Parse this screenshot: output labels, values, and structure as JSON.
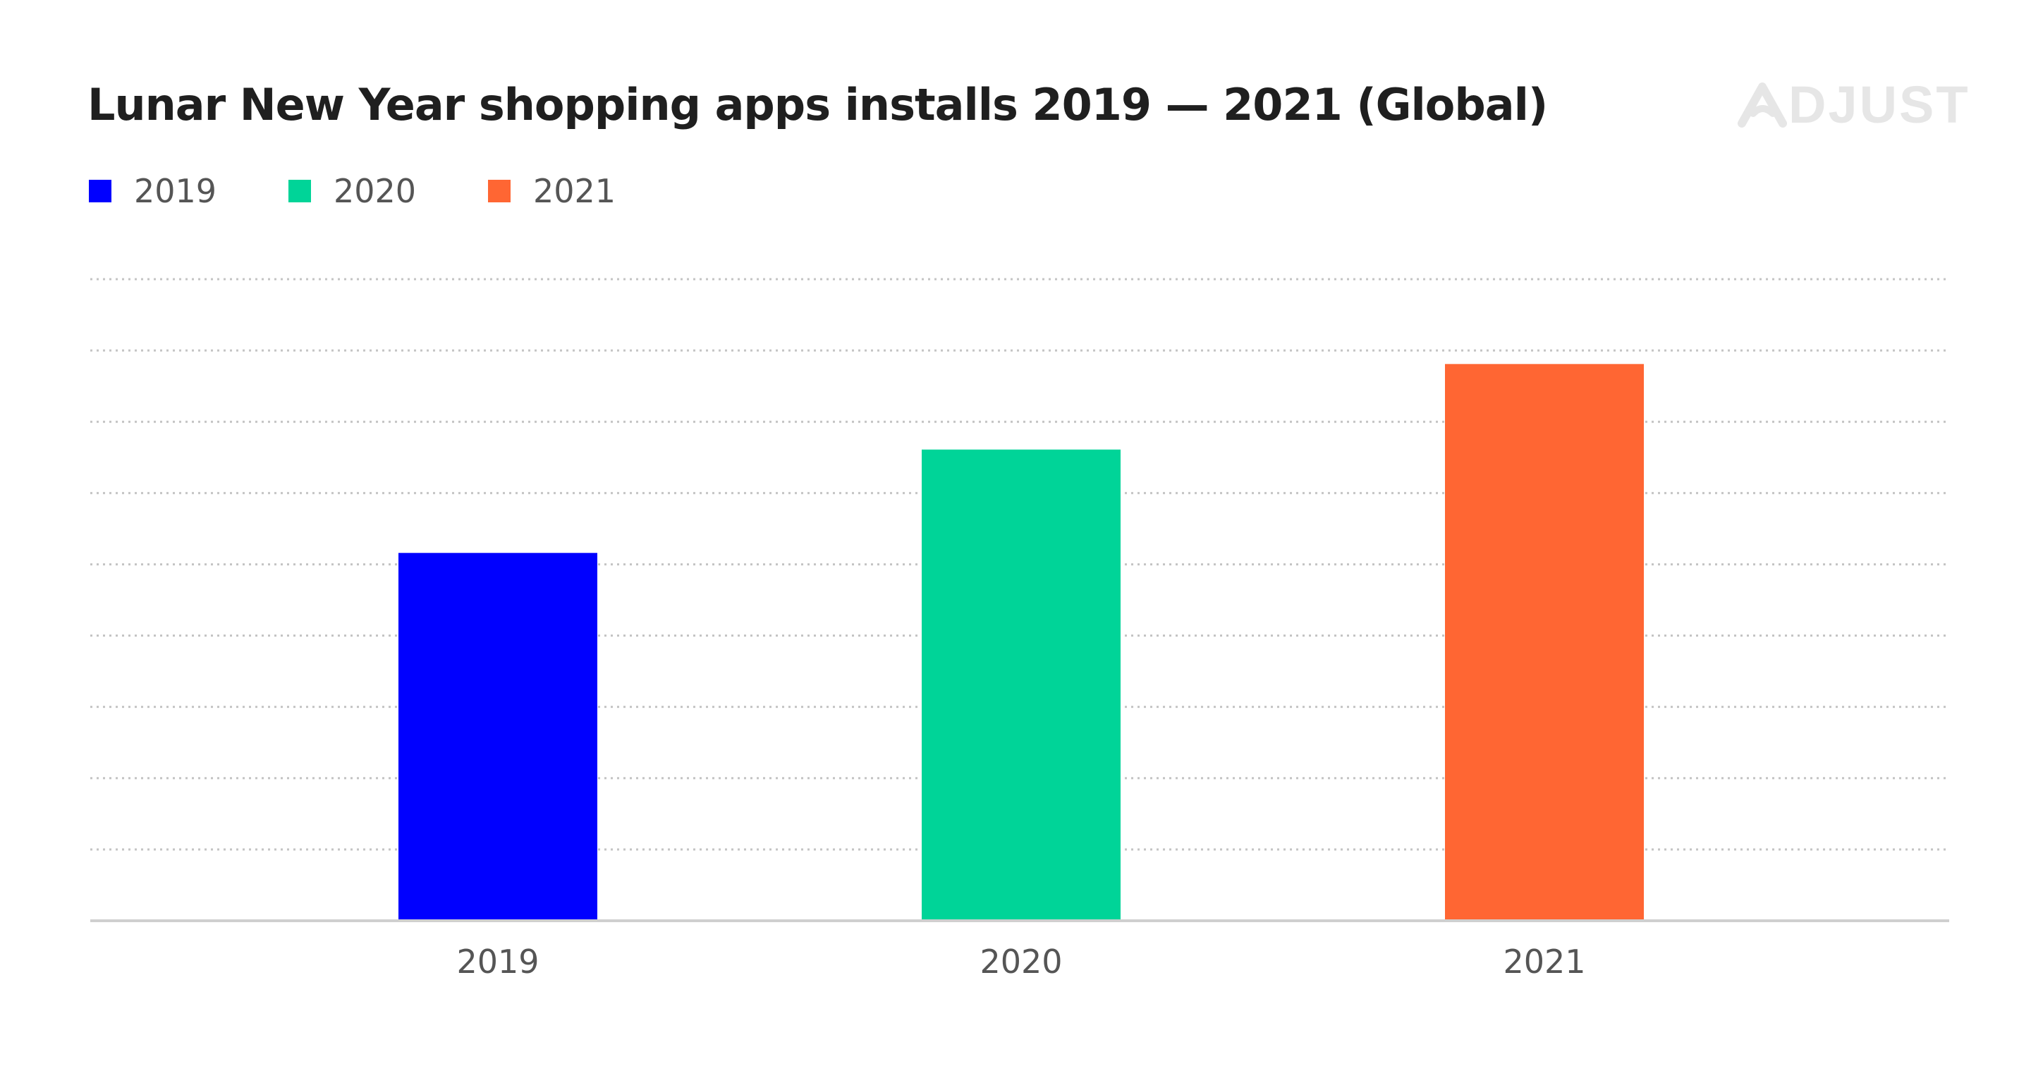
{
  "title": "Lunar New Year shopping apps installs 2019 — 2021 (Global)",
  "brand": {
    "name": "ADJUST",
    "logo_text": "DJUST",
    "color": "#e6e6e6"
  },
  "legend": [
    {
      "label": "2019",
      "color": "#0000ff"
    },
    {
      "label": "2020",
      "color": "#00d498"
    },
    {
      "label": "2021",
      "color": "#ff6633"
    }
  ],
  "chart_data": {
    "type": "bar",
    "title": "Lunar New Year shopping apps installs 2019 — 2021 (Global)",
    "categories": [
      "2019",
      "2020",
      "2021"
    ],
    "values": [
      51.6,
      66.1,
      78.1
    ],
    "colors": [
      "#0000ff",
      "#00d498",
      "#ff6633"
    ],
    "xlabel": "",
    "ylabel": "",
    "ylim": [
      0,
      90
    ],
    "y_ticks_shown": false,
    "grid": true,
    "grid_style": "dotted",
    "legend_position": "top-left"
  }
}
